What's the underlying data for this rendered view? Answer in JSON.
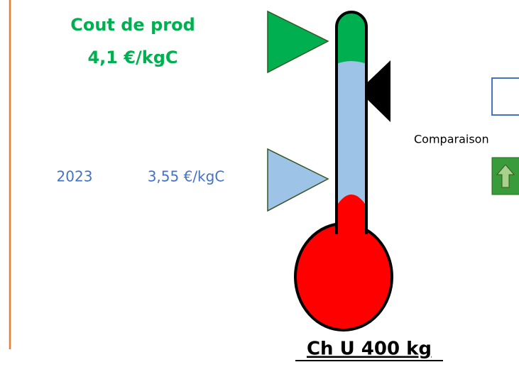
{
  "cost_label": {
    "title": "Cout de prod",
    "value": "4,1 €/kgC"
  },
  "reference": {
    "year": "2023",
    "value": "3,55 €/kgC"
  },
  "comparison_label": "Comparaison",
  "footer_label": "Ch U 400 kg"
}
